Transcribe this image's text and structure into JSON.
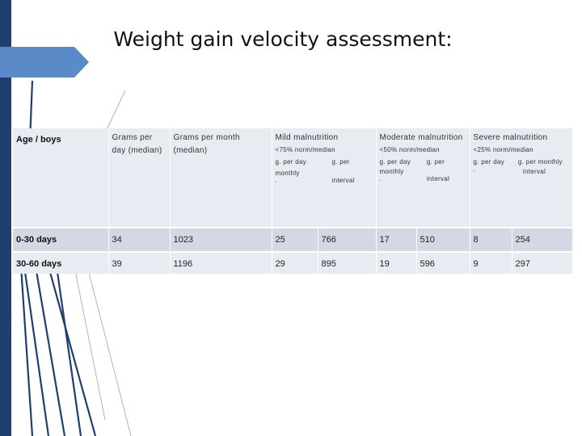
{
  "title": "Weight gain velocity assessment:",
  "table": {
    "age_header": "Age / boys",
    "grams_day": [
      "Grams per",
      "day (median)"
    ],
    "grams_month": [
      "Grams per month",
      "(median)"
    ],
    "mild": {
      "name": "Mild malnutrition",
      "threshold": "<75% norm/median",
      "col1": [
        "g. per day",
        "monthly",
        "."
      ],
      "col2": [
        "g. per",
        "interval"
      ]
    },
    "moderate": {
      "name": "Moderate malnutrition",
      "threshold": "<50% norm/median",
      "col1": [
        "g. per day",
        "monthly",
        "."
      ],
      "col2": [
        "g. per",
        "interval"
      ]
    },
    "severe": {
      "name": "Severe malnutrition",
      "threshold": "<25% norm/median",
      "col1": [
        "g. per day",
        "."
      ],
      "col2": [
        "g. per monthly",
        "interval"
      ]
    },
    "rows": [
      {
        "label": "0-30 days",
        "values": [
          "34",
          "1023",
          "25",
          "766",
          "17",
          "510",
          "8",
          "254"
        ]
      },
      {
        "label": "30-60 days",
        "values": [
          "39",
          "1196",
          "29",
          "895",
          "19",
          "596",
          "9",
          "297"
        ]
      }
    ]
  }
}
